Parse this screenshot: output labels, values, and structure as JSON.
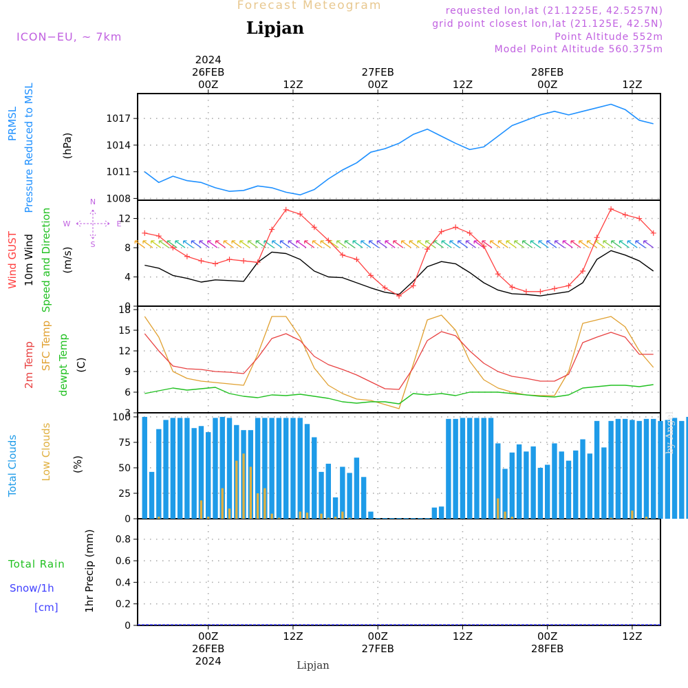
{
  "header": {
    "title": "Forecast Meteogram",
    "location": "Lipjan",
    "model": "ICON−EU, ~ 7km",
    "requested": "requested lon,lat (21.1225E, 42.5257N)",
    "grid_point": "grid point closest lon,lat (21.125E, 42.5N)",
    "point_altitude": "Point Altitude 552m",
    "model_altitude": "Model Point Altitude 560.375m",
    "footer": "Lipjan",
    "credit": "by Angel"
  },
  "time_axis": {
    "top_year": "2024",
    "top_dates": [
      "26FEB",
      "27FEB",
      "28FEB"
    ],
    "top_hours": [
      "00Z",
      "12Z",
      "00Z",
      "12Z",
      "00Z",
      "12Z"
    ],
    "bottom_hours": [
      "00Z",
      "12Z",
      "00Z",
      "12Z",
      "00Z",
      "12Z"
    ],
    "bottom_dates": [
      "26FEB",
      "27FEB",
      "28FEB"
    ],
    "bottom_year": "2024"
  },
  "colors": {
    "pressure": "#1e90ff",
    "gust": "#ff4040",
    "wind": "#000000",
    "t2m": "#e84040",
    "sfc_temp": "#e0a030",
    "dewpoint": "#20c020",
    "total_clouds": "#1e9be8",
    "low_clouds": "#e0b040",
    "rain": "#20c020",
    "snow": "#4040ff",
    "header_purple": "#c060e0"
  },
  "chart_data": [
    {
      "type": "line",
      "ylabel": [
        "PRMSL",
        "Pressure Reduced to MSL",
        "(hPa)"
      ],
      "yticks": [
        1008,
        1011,
        1014,
        1017
      ],
      "ylim": [
        1007.8,
        1019.8
      ],
      "x_hours": [
        -9,
        -7,
        -5,
        -3,
        -1,
        1,
        3,
        5,
        7,
        9,
        11,
        13,
        15,
        17,
        19,
        21,
        23,
        25,
        27,
        29,
        31,
        33,
        35,
        37,
        39,
        41,
        43,
        45,
        47,
        49,
        51,
        53,
        55,
        57,
        59,
        61,
        63
      ],
      "series": [
        {
          "values": [
            1011.0,
            1009.8,
            1010.5,
            1010.0,
            1009.8,
            1009.2,
            1008.8,
            1008.9,
            1009.4,
            1009.2,
            1008.7,
            1008.4,
            1009.0,
            1010.2,
            1011.2,
            1012.0,
            1013.2,
            1013.6,
            1014.2,
            1015.2,
            1015.8,
            1015.0,
            1014.2,
            1013.5,
            1013.8,
            1015.0,
            1016.2,
            1016.8,
            1017.4,
            1017.8,
            1017.4,
            1017.8,
            1018.2,
            1018.6,
            1018.0,
            1016.8,
            1016.4
          ]
        }
      ]
    },
    {
      "type": "line",
      "ylabel": [
        "Wind GUST",
        "10m Wind",
        "Speed and Direction",
        "(m/s)"
      ],
      "compass": [
        "N",
        "W",
        "E",
        "S"
      ],
      "yticks": [
        0,
        4,
        8,
        12
      ],
      "ylim": [
        0,
        14.5
      ],
      "x_hours": [
        -9,
        -7,
        -5,
        -3,
        -1,
        1,
        3,
        5,
        7,
        9,
        11,
        13,
        15,
        17,
        19,
        21,
        23,
        25,
        27,
        29,
        31,
        33,
        35,
        37,
        39,
        41,
        43,
        45,
        47,
        49,
        51,
        53,
        55,
        57,
        59,
        61,
        63
      ],
      "series": [
        {
          "name": "Wind GUST",
          "values": [
            10.0,
            9.6,
            8.0,
            6.8,
            6.2,
            5.8,
            6.4,
            6.2,
            6.0,
            10.5,
            13.2,
            12.6,
            10.8,
            9.0,
            7.0,
            6.4,
            4.2,
            2.5,
            1.4,
            2.8,
            7.8,
            10.2,
            10.8,
            10.0,
            8.2,
            4.4,
            2.6,
            2.0,
            2.0,
            2.4,
            2.8,
            4.8,
            9.4,
            13.3,
            12.5,
            12.0,
            10.0
          ]
        },
        {
          "name": "10m Wind",
          "values": [
            5.6,
            5.2,
            4.2,
            3.8,
            3.3,
            3.6,
            3.5,
            3.4,
            6.0,
            7.4,
            7.2,
            6.4,
            4.8,
            4.0,
            3.9,
            3.2,
            2.5,
            1.9,
            1.6,
            3.4,
            5.4,
            6.1,
            5.8,
            4.6,
            3.2,
            2.2,
            1.7,
            1.6,
            1.4,
            1.7,
            2.0,
            3.2,
            6.4,
            7.6,
            7.0,
            6.2,
            4.8
          ]
        }
      ],
      "arrows": {
        "x_hours_from": -9,
        "x_hours_to": 63,
        "count": 64
      }
    },
    {
      "type": "line",
      "ylabel": [
        "2m Temp",
        "SFC Temp",
        "dewpt Temp",
        "(C)"
      ],
      "yticks": [
        3,
        6,
        9,
        12,
        15,
        18
      ],
      "ylim": [
        3,
        18.5
      ],
      "x_hours": [
        -9,
        -7,
        -5,
        -3,
        -1,
        1,
        3,
        5,
        7,
        9,
        11,
        13,
        15,
        17,
        19,
        21,
        23,
        25,
        27,
        29,
        31,
        33,
        35,
        37,
        39,
        41,
        43,
        45,
        47,
        49,
        51,
        53,
        55,
        57,
        59,
        61,
        63
      ],
      "series": [
        {
          "name": "2m Temp",
          "values": [
            14.5,
            12.0,
            9.8,
            9.4,
            9.3,
            9.0,
            8.9,
            8.7,
            11.0,
            13.8,
            14.5,
            13.5,
            11.2,
            10.0,
            9.3,
            8.5,
            7.5,
            6.5,
            6.4,
            9.5,
            13.5,
            14.8,
            14.2,
            12.0,
            10.2,
            9.0,
            8.3,
            8.0,
            7.6,
            7.6,
            8.6,
            13.2,
            14.0,
            14.7,
            14.0,
            11.5,
            11.5
          ]
        },
        {
          "name": "SFC Temp",
          "values": [
            17.0,
            14.0,
            9.0,
            8.0,
            7.6,
            7.4,
            7.2,
            7.0,
            11.5,
            17.0,
            17.0,
            14.0,
            9.5,
            7.0,
            5.8,
            5.0,
            4.8,
            4.2,
            3.6,
            10.0,
            16.5,
            17.2,
            15.0,
            10.5,
            7.8,
            6.6,
            6.0,
            5.6,
            5.5,
            5.5,
            9.0,
            16.0,
            16.5,
            17.0,
            15.5,
            12.0,
            9.6
          ]
        },
        {
          "name": "dewpt Temp",
          "values": [
            5.8,
            6.2,
            6.6,
            6.3,
            6.5,
            6.7,
            5.8,
            5.4,
            5.2,
            5.6,
            5.5,
            5.7,
            5.4,
            5.1,
            4.6,
            4.4,
            4.6,
            4.6,
            4.3,
            5.8,
            5.6,
            5.8,
            5.5,
            6.0,
            6.0,
            6.0,
            5.8,
            5.6,
            5.4,
            5.3,
            5.6,
            6.6,
            6.8,
            7.0,
            7.0,
            6.8,
            7.1
          ]
        }
      ]
    },
    {
      "type": "bar",
      "ylabel": [
        "Total Clouds",
        "Low Clouds",
        "(%)"
      ],
      "yticks": [
        0,
        25,
        50,
        75,
        100
      ],
      "ylim": [
        0,
        104
      ],
      "x_hours_from": -9,
      "x_hours_step": 1,
      "series": [
        {
          "name": "Total Clouds",
          "values": [
            100,
            46,
            88,
            97,
            99,
            99,
            99,
            89,
            91,
            85,
            99,
            100,
            99,
            92,
            87,
            87,
            99,
            99,
            99,
            99,
            99,
            99,
            99,
            93,
            80,
            46,
            54,
            21,
            51,
            45,
            60,
            41,
            7,
            0,
            0,
            0,
            0,
            0,
            0,
            0,
            0,
            11,
            12,
            98,
            98,
            99,
            99,
            99,
            99,
            99,
            74,
            49,
            65,
            73,
            66,
            71,
            50,
            53,
            74,
            66,
            57,
            67,
            78,
            64,
            96,
            70,
            96,
            98,
            98,
            97,
            96,
            98,
            98,
            96,
            97,
            99,
            96,
            100,
            100
          ]
        },
        {
          "name": "Low Clouds",
          "values": [
            0,
            0,
            2,
            0,
            0,
            0,
            0,
            0,
            18,
            2,
            0,
            30,
            10,
            57,
            64,
            51,
            25,
            30,
            5,
            1,
            0,
            0,
            7,
            6,
            0,
            5,
            1,
            2,
            7,
            1,
            0,
            0,
            0,
            0,
            0,
            0,
            0,
            0,
            0,
            0,
            0,
            0,
            0,
            0,
            0,
            0,
            0,
            0,
            0,
            0,
            20,
            7,
            2,
            0,
            0,
            0,
            0,
            0,
            0,
            0,
            0,
            0,
            0,
            0,
            0,
            0,
            1,
            0,
            0,
            8,
            0,
            2,
            0,
            0,
            0,
            0,
            0,
            0,
            0
          ]
        }
      ]
    },
    {
      "type": "bar",
      "ylabel": [
        "Total Rain",
        "Snow/1h",
        "[cm]",
        "1hr Precip (mm)"
      ],
      "yticks": [
        0,
        0.2,
        0.4,
        0.6,
        0.8
      ],
      "ylim": [
        0,
        0.99
      ],
      "series": [
        {
          "name": "Total Rain",
          "values": []
        },
        {
          "name": "Snow/1h",
          "values": []
        }
      ]
    }
  ]
}
